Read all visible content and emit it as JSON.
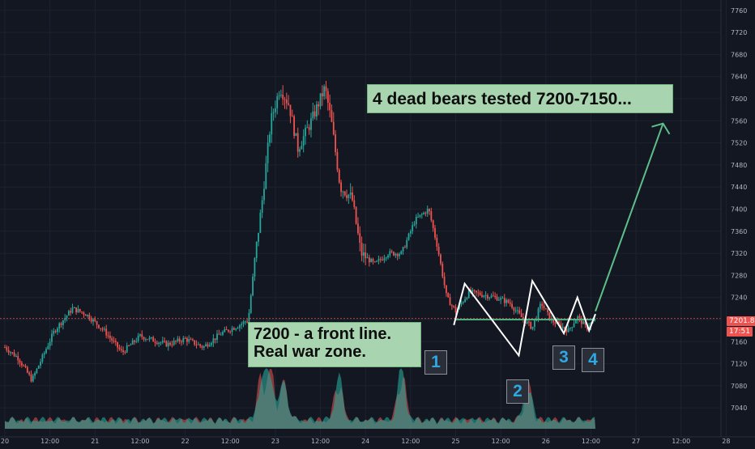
{
  "chart_data": {
    "type": "candlestick",
    "ylim": [
      7030,
      7770
    ],
    "y_ticks": [
      7760,
      7720,
      7680,
      7640,
      7600,
      7560,
      7520,
      7480,
      7440,
      7400,
      7360,
      7320,
      7280,
      7240,
      7200,
      7160,
      7120,
      7080,
      7040
    ],
    "x_ticks": [
      "20",
      "12:00",
      "21",
      "12:00",
      "22",
      "12:00",
      "23",
      "12:00",
      "24",
      "12:00",
      "25",
      "12:00",
      "26",
      "12:00",
      "27",
      "12:00",
      "28"
    ],
    "current_price": "7201.81",
    "countdown": "17:51",
    "support_level": 7200,
    "ohlc_keypoints": [
      {
        "day": 20.0,
        "price": 7150
      },
      {
        "day": 20.15,
        "price": 7130
      },
      {
        "day": 20.3,
        "price": 7090
      },
      {
        "day": 20.55,
        "price": 7180
      },
      {
        "day": 20.75,
        "price": 7220
      },
      {
        "day": 20.9,
        "price": 7210
      },
      {
        "day": 21.1,
        "price": 7180
      },
      {
        "day": 21.3,
        "price": 7140
      },
      {
        "day": 21.5,
        "price": 7170
      },
      {
        "day": 21.8,
        "price": 7155
      },
      {
        "day": 22.0,
        "price": 7165
      },
      {
        "day": 22.2,
        "price": 7150
      },
      {
        "day": 22.4,
        "price": 7175
      },
      {
        "day": 22.6,
        "price": 7190
      },
      {
        "day": 22.7,
        "price": 7200
      },
      {
        "day": 22.78,
        "price": 7320
      },
      {
        "day": 22.85,
        "price": 7410
      },
      {
        "day": 22.95,
        "price": 7560
      },
      {
        "day": 23.05,
        "price": 7620
      },
      {
        "day": 23.15,
        "price": 7590
      },
      {
        "day": 23.25,
        "price": 7510
      },
      {
        "day": 23.4,
        "price": 7560
      },
      {
        "day": 23.55,
        "price": 7620
      },
      {
        "day": 23.62,
        "price": 7560
      },
      {
        "day": 23.72,
        "price": 7440
      },
      {
        "day": 23.85,
        "price": 7420
      },
      {
        "day": 23.95,
        "price": 7320
      },
      {
        "day": 24.1,
        "price": 7300
      },
      {
        "day": 24.25,
        "price": 7320
      },
      {
        "day": 24.4,
        "price": 7320
      },
      {
        "day": 24.55,
        "price": 7380
      },
      {
        "day": 24.7,
        "price": 7400
      },
      {
        "day": 24.8,
        "price": 7330
      },
      {
        "day": 24.9,
        "price": 7240
      },
      {
        "day": 25.0,
        "price": 7215
      },
      {
        "day": 25.15,
        "price": 7250
      },
      {
        "day": 25.3,
        "price": 7245
      },
      {
        "day": 25.45,
        "price": 7240
      },
      {
        "day": 25.6,
        "price": 7230
      },
      {
        "day": 25.75,
        "price": 7200
      },
      {
        "day": 25.85,
        "price": 7185
      },
      {
        "day": 25.95,
        "price": 7230
      },
      {
        "day": 26.05,
        "price": 7200
      },
      {
        "day": 26.15,
        "price": 7190
      },
      {
        "day": 26.25,
        "price": 7180
      },
      {
        "day": 26.35,
        "price": 7205
      },
      {
        "day": 26.45,
        "price": 7185
      },
      {
        "day": 26.55,
        "price": 7200
      }
    ],
    "volume_peaks": [
      {
        "day": 22.85,
        "value": 0.9
      },
      {
        "day": 22.95,
        "value": 1.0
      },
      {
        "day": 23.1,
        "value": 0.7
      },
      {
        "day": 23.7,
        "value": 0.8
      },
      {
        "day": 24.4,
        "value": 1.0
      },
      {
        "day": 25.8,
        "value": 0.7
      }
    ],
    "annotations": {
      "title": "4 dead bears tested 7200-7150...",
      "zone": "7200 - a front line.\nReal war zone.",
      "tags": [
        "1",
        "2",
        "3",
        "4"
      ]
    }
  },
  "colors": {
    "background": "#131722",
    "grid": "#1e2230",
    "up": "#26a69a",
    "down": "#ef5350",
    "note_bg": "#a8d5b0",
    "support_line": "#4caf7d",
    "tag_text": "#2fa7e0",
    "price_badge": "#ef5350"
  }
}
